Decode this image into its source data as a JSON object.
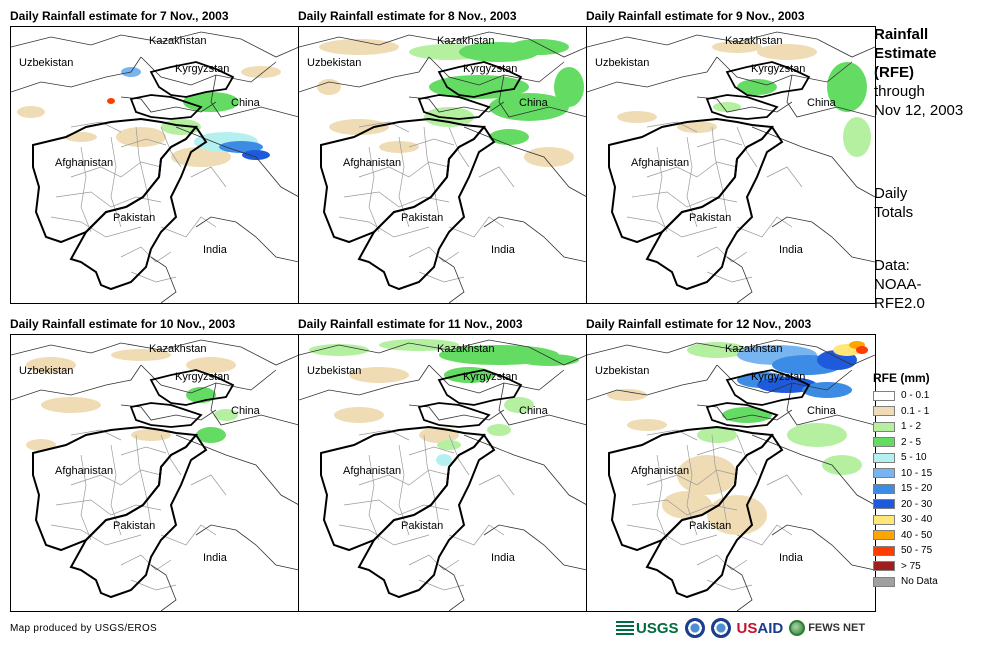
{
  "panels": [
    {
      "title": "Daily Rainfall estimate for 7 Nov., 2003",
      "day": 7
    },
    {
      "title": "Daily Rainfall estimate for 8 Nov., 2003",
      "day": 8
    },
    {
      "title": "Daily Rainfall estimate for 9 Nov., 2003",
      "day": 9
    },
    {
      "title": "Daily Rainfall estimate for 10 Nov., 2003",
      "day": 10
    },
    {
      "title": "Daily Rainfall estimate for 11 Nov., 2003",
      "day": 11
    },
    {
      "title": "Daily Rainfall estimate for 12 Nov., 2003",
      "day": 12
    }
  ],
  "map_labels": {
    "kazakhstan": "Kazakhstan",
    "uzbekistan": "Uzbekistan",
    "kyrgyzstan": "Kyrgyzstan",
    "china": "China",
    "afghanistan": "Afghanistan",
    "pakistan": "Pakistan",
    "india": "India"
  },
  "sidebar": {
    "title_line1": "Rainfall",
    "title_line2": "Estimate",
    "title_line3": "(RFE)",
    "through_line1": "through",
    "through_line2": "Nov 12, 2003",
    "totals_line1": "Daily",
    "totals_line2": "Totals",
    "data_line1": "Data:",
    "data_line2": "NOAA-",
    "data_line3": "RFE2.0"
  },
  "legend": {
    "title": "RFE (mm)",
    "items": [
      {
        "label": "0 - 0.1",
        "color": "#ffffff"
      },
      {
        "label": "0.1 - 1",
        "color": "#f0dcb4"
      },
      {
        "label": "1 - 2",
        "color": "#b4f0a0"
      },
      {
        "label": "2 - 5",
        "color": "#64dc64"
      },
      {
        "label": "5 - 10",
        "color": "#b4f0f0"
      },
      {
        "label": "10 - 15",
        "color": "#78b4f0"
      },
      {
        "label": "15 - 20",
        "color": "#3c8ce6"
      },
      {
        "label": "20 - 30",
        "color": "#1e5adc"
      },
      {
        "label": "30 - 40",
        "color": "#ffe678"
      },
      {
        "label": "40 - 50",
        "color": "#ffa500"
      },
      {
        "label": "50 - 75",
        "color": "#ff3c00"
      },
      {
        "label": "> 75",
        "color": "#a01e1e"
      },
      {
        "label": "No Data",
        "color": "#a0a0a0"
      }
    ]
  },
  "footer": {
    "credit": "Map produced by USGS/EROS",
    "logo_usgs": "USGS",
    "logo_usaid_us": "US",
    "logo_usaid_aid": "AID",
    "logo_fews": "FEWS NET"
  }
}
